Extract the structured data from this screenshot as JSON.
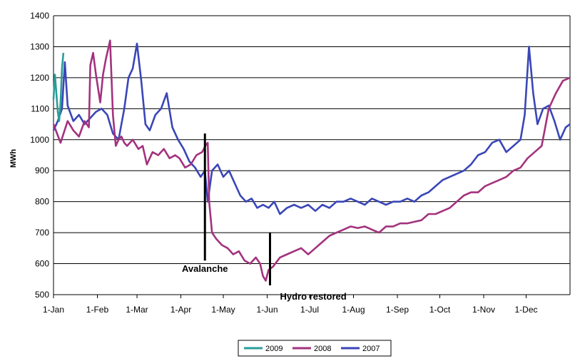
{
  "chart_data": {
    "type": "line",
    "title": "",
    "xlabel": "",
    "ylabel": "MWh",
    "ylim": [
      500,
      1400
    ],
    "yticks": [
      500,
      600,
      700,
      800,
      900,
      1000,
      1100,
      1200,
      1300,
      1400
    ],
    "xlim": [
      0,
      365
    ],
    "xticks": [
      {
        "label": "1-Jan",
        "day": 0
      },
      {
        "label": "1-Feb",
        "day": 31
      },
      {
        "label": "1-Mar",
        "day": 59
      },
      {
        "label": "1-Apr",
        "day": 90
      },
      {
        "label": "1-May",
        "day": 120
      },
      {
        "label": "1-Jun",
        "day": 151
      },
      {
        "label": "1-Jul",
        "day": 181
      },
      {
        "label": "1-Aug",
        "day": 212
      },
      {
        "label": "1-Sep",
        "day": 243
      },
      {
        "label": "1-Oct",
        "day": 273
      },
      {
        "label": "1-Nov",
        "day": 304
      },
      {
        "label": "1-Dec",
        "day": 334
      }
    ],
    "grid": "horizontal",
    "legend_position": "bottom",
    "series": [
      {
        "name": "2009",
        "color": "#2a9d9a",
        "x": [
          0,
          1,
          2,
          3,
          4,
          5,
          6,
          7
        ],
        "y": [
          1130,
          1210,
          1150,
          1090,
          1060,
          1120,
          1230,
          1280
        ]
      },
      {
        "name": "2008",
        "color": "#a3327e",
        "x": [
          0,
          5,
          10,
          14,
          18,
          22,
          25,
          26,
          28,
          30,
          33,
          35,
          37,
          40,
          42,
          44,
          46,
          48,
          50,
          52,
          56,
          60,
          63,
          66,
          70,
          74,
          78,
          82,
          86,
          89,
          93,
          97,
          101,
          105,
          108,
          109,
          110,
          112,
          115,
          119,
          123,
          127,
          131,
          135,
          139,
          143,
          146,
          148,
          150,
          152,
          155,
          160,
          165,
          170,
          175,
          180,
          185,
          190,
          195,
          200,
          205,
          210,
          215,
          220,
          225,
          230,
          235,
          240,
          245,
          250,
          255,
          260,
          265,
          270,
          275,
          280,
          285,
          290,
          295,
          300,
          305,
          310,
          315,
          320,
          325,
          330,
          335,
          340,
          345,
          350,
          355,
          360,
          365
        ],
        "y": [
          1050,
          990,
          1060,
          1030,
          1010,
          1060,
          1040,
          1240,
          1280,
          1210,
          1120,
          1210,
          1260,
          1320,
          1080,
          980,
          1000,
          1010,
          990,
          980,
          1000,
          970,
          980,
          920,
          960,
          950,
          970,
          940,
          950,
          940,
          910,
          920,
          950,
          960,
          985,
          990,
          800,
          700,
          680,
          660,
          650,
          630,
          640,
          610,
          600,
          620,
          600,
          560,
          545,
          580,
          590,
          620,
          630,
          640,
          650,
          630,
          650,
          670,
          690,
          700,
          710,
          720,
          715,
          720,
          710,
          700,
          720,
          720,
          730,
          730,
          735,
          740,
          760,
          760,
          770,
          780,
          800,
          820,
          830,
          830,
          850,
          860,
          870,
          880,
          900,
          910,
          940,
          960,
          980,
          1100,
          1150,
          1190,
          1200
        ]
      },
      {
        "name": "2007",
        "color": "#3a46b7",
        "x": [
          0,
          3,
          6,
          8,
          10,
          14,
          18,
          22,
          26,
          30,
          34,
          38,
          42,
          46,
          50,
          53,
          56,
          59,
          62,
          65,
          68,
          72,
          76,
          80,
          84,
          88,
          92,
          96,
          100,
          104,
          107,
          109,
          112,
          116,
          120,
          124,
          128,
          132,
          136,
          140,
          144,
          148,
          152,
          156,
          160,
          165,
          170,
          175,
          180,
          185,
          190,
          195,
          200,
          205,
          210,
          215,
          220,
          225,
          230,
          235,
          240,
          245,
          250,
          255,
          260,
          265,
          270,
          275,
          280,
          285,
          290,
          295,
          300,
          305,
          310,
          315,
          320,
          325,
          330,
          333,
          336,
          339,
          342,
          346,
          350,
          354,
          358,
          362,
          365
        ],
        "y": [
          1030,
          1060,
          1100,
          1250,
          1110,
          1060,
          1080,
          1050,
          1070,
          1090,
          1100,
          1080,
          1020,
          1000,
          1100,
          1200,
          1230,
          1310,
          1190,
          1050,
          1030,
          1080,
          1100,
          1150,
          1040,
          1000,
          970,
          930,
          910,
          880,
          900,
          800,
          900,
          920,
          880,
          900,
          860,
          820,
          800,
          810,
          780,
          790,
          780,
          800,
          760,
          780,
          790,
          780,
          790,
          770,
          790,
          780,
          800,
          800,
          810,
          800,
          790,
          810,
          800,
          790,
          800,
          800,
          810,
          800,
          820,
          830,
          850,
          870,
          880,
          890,
          900,
          920,
          950,
          960,
          990,
          1000,
          960,
          980,
          1000,
          1080,
          1300,
          1150,
          1050,
          1100,
          1110,
          1060,
          1000,
          1040,
          1050
        ]
      }
    ],
    "annotations": [
      {
        "text": "Avalanche",
        "line_day": 107,
        "line_y": [
          610,
          1020
        ]
      },
      {
        "text": "Hydro restored",
        "line_day": 153,
        "line_y": [
          530,
          700
        ]
      }
    ]
  }
}
